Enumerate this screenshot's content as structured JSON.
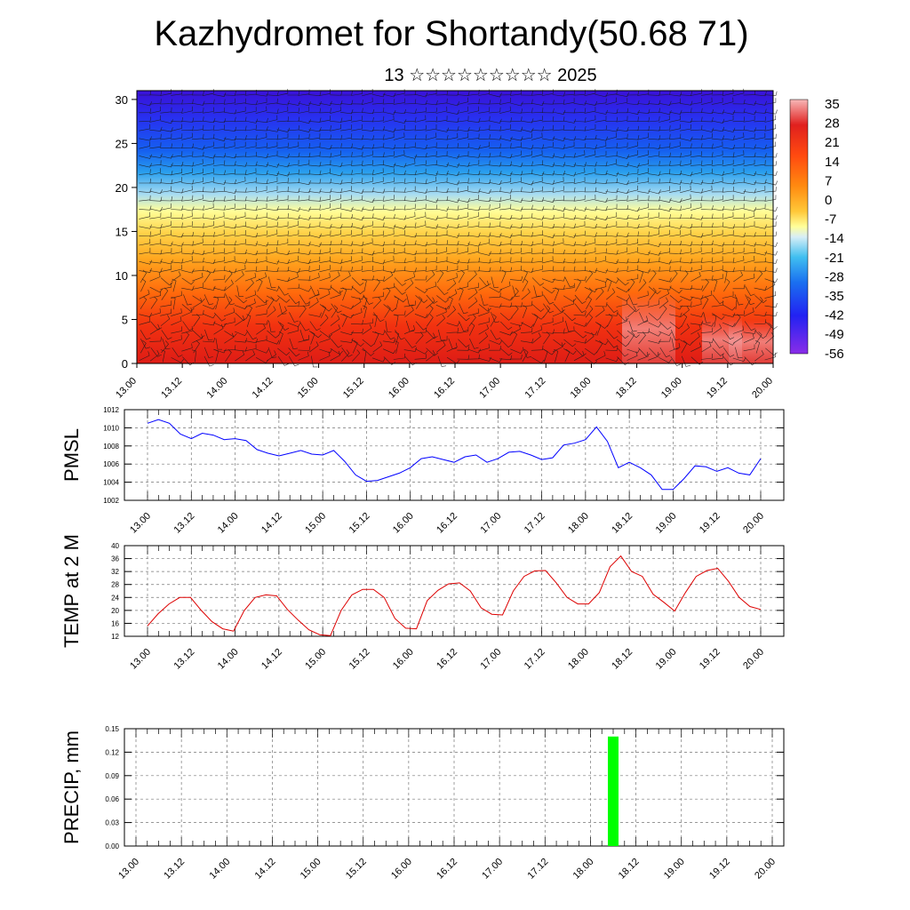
{
  "header": {
    "title": "Kazhydromet for Shortandy(50.68 71)",
    "subtitle": "13 ☆☆☆☆☆☆☆☆☆ 2025"
  },
  "time_ticks": [
    "13.00",
    "13.12",
    "14.00",
    "14.12",
    "15.00",
    "15.12",
    "16.00",
    "16.12",
    "17.00",
    "17.12",
    "18.00",
    "18.12",
    "19.00",
    "19.12",
    "20.00"
  ],
  "chart_data": [
    {
      "type": "heatmap",
      "ylim": [
        0,
        31
      ],
      "yticks": [
        0,
        5,
        10,
        15,
        20,
        25,
        30
      ],
      "colorbar_labels": [
        "35",
        "28",
        "21",
        "14",
        "7",
        "0",
        "-7",
        "-14",
        "-21",
        "-28",
        "-35",
        "-42",
        "-49",
        "-56"
      ],
      "overlay": "wind-barbs"
    },
    {
      "type": "line",
      "ylabel": "PMSL",
      "ylim": [
        1002,
        1012
      ],
      "yticks": [
        1002,
        1004,
        1006,
        1008,
        1010,
        1012
      ],
      "color": "#0000ff",
      "values": [
        1010.5,
        1010.9,
        1010.5,
        1009.3,
        1008.8,
        1009.4,
        1009.2,
        1008.7,
        1008.8,
        1008.6,
        1007.6,
        1007.2,
        1006.9,
        1007.2,
        1007.5,
        1007.1,
        1007.0,
        1007.5,
        1006.3,
        1004.8,
        1004.1,
        1004.2,
        1004.6,
        1005.0,
        1005.6,
        1006.6,
        1006.8,
        1006.5,
        1006.2,
        1006.8,
        1007.0,
        1006.2,
        1006.6,
        1007.3,
        1007.4,
        1007.0,
        1006.5,
        1006.7,
        1008.1,
        1008.3,
        1008.7,
        1010.1,
        1008.5,
        1005.6,
        1006.2,
        1005.6,
        1004.8,
        1003.2,
        1003.2,
        1004.4,
        1005.8,
        1005.7,
        1005.2,
        1005.6,
        1005.0,
        1004.8,
        1006.6
      ]
    },
    {
      "type": "line",
      "ylabel": "TEMP at 2 M",
      "ylim": [
        12,
        40
      ],
      "yticks": [
        12,
        16,
        20,
        24,
        28,
        32,
        36,
        40
      ],
      "color": "#dd0000",
      "values": [
        15.2,
        19.0,
        22.0,
        24.0,
        24.0,
        20.0,
        16.5,
        14.3,
        13.6,
        20.0,
        24.0,
        24.8,
        24.5,
        20.3,
        17.0,
        14.0,
        12.5,
        12.2,
        20.0,
        24.8,
        26.5,
        26.5,
        24.0,
        17.5,
        14.5,
        14.3,
        23.0,
        26.2,
        28.2,
        28.5,
        26.0,
        20.8,
        18.8,
        18.6,
        26.0,
        30.5,
        32.2,
        32.3,
        28.5,
        24.0,
        22.0,
        22.0,
        25.5,
        33.5,
        36.8,
        32.0,
        30.5,
        25.0,
        22.5,
        19.8,
        25.5,
        30.5,
        32.3,
        33.0,
        29.0,
        24.0,
        21.2,
        20.3
      ]
    },
    {
      "type": "bar",
      "ylabel": "PRECIP, mm",
      "ylim": [
        0,
        0.15
      ],
      "yticks": [
        "0.00",
        "0.03",
        "0.06",
        "0.09",
        "0.12",
        "0.15"
      ],
      "color": "#00ff00",
      "bars": [
        {
          "x": 18.25,
          "value": 0.14
        }
      ]
    }
  ]
}
